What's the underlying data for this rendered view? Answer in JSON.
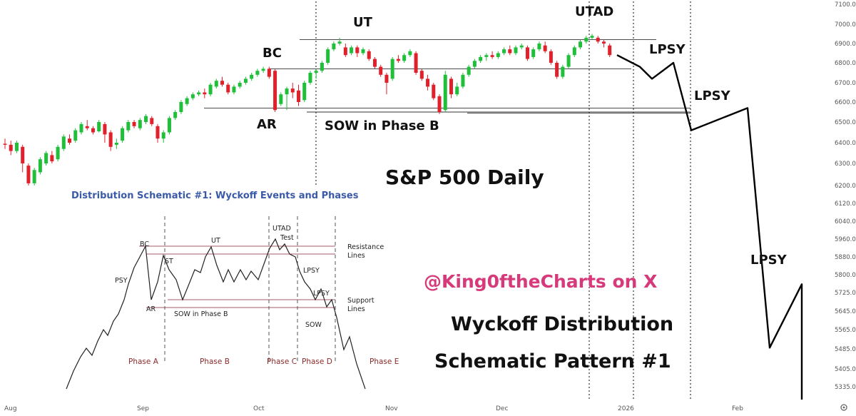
{
  "chart_data": {
    "type": "candlestick",
    "title": "S&P 500 Daily",
    "caption_handle": "@King0ftheCharts on X",
    "caption_line1": "Wyckoff Distribution",
    "caption_line2": "Schematic Pattern #1",
    "y_ticks": [
      "7100.0",
      "7000.0",
      "6900.0",
      "6800.0",
      "6700.0",
      "6600.0",
      "6500.0",
      "6400.0",
      "6300.0",
      "6200.0",
      "6120.0",
      "6040.0",
      "5960.0",
      "5880.0",
      "5800.0",
      "5725.0",
      "5645.0",
      "5565.0",
      "5485.0",
      "5405.0",
      "5335.0"
    ],
    "x_ticks": [
      "Aug",
      "Sep",
      "Oct",
      "Nov",
      "Dec",
      "2026",
      "Feb"
    ],
    "annotations": [
      "BC",
      "AR",
      "UT",
      "SOW in Phase B",
      "UTAD",
      "LPSY",
      "LPSY",
      "LPSY"
    ],
    "levels": [
      6920,
      6770,
      6570,
      6550,
      6545
    ],
    "candles": [
      [
        6395,
        6390,
        6420,
        6370
      ],
      [
        6390,
        6360,
        6410,
        6340
      ],
      [
        6360,
        6400,
        6410,
        6350
      ],
      [
        6380,
        6300,
        6390,
        6260
      ],
      [
        6290,
        6210,
        6300,
        6200
      ],
      [
        6210,
        6270,
        6280,
        6200
      ],
      [
        6260,
        6320,
        6330,
        6250
      ],
      [
        6300,
        6350,
        6360,
        6290
      ],
      [
        6340,
        6310,
        6360,
        6300
      ],
      [
        6320,
        6380,
        6390,
        6310
      ],
      [
        6370,
        6430,
        6440,
        6360
      ],
      [
        6420,
        6400,
        6440,
        6390
      ],
      [
        6410,
        6460,
        6470,
        6400
      ],
      [
        6450,
        6490,
        6500,
        6440
      ],
      [
        6480,
        6470,
        6510,
        6460
      ],
      [
        6470,
        6450,
        6480,
        6440
      ],
      [
        6455,
        6500,
        6510,
        6450
      ],
      [
        6490,
        6440,
        6500,
        6400
      ],
      [
        6450,
        6380,
        6460,
        6360
      ],
      [
        6390,
        6400,
        6420,
        6370
      ],
      [
        6410,
        6470,
        6480,
        6400
      ],
      [
        6460,
        6500,
        6510,
        6450
      ],
      [
        6500,
        6480,
        6510,
        6470
      ],
      [
        6470,
        6510,
        6520,
        6460
      ],
      [
        6500,
        6530,
        6540,
        6490
      ],
      [
        6520,
        6490,
        6530,
        6480
      ],
      [
        6480,
        6420,
        6490,
        6400
      ],
      [
        6420,
        6450,
        6460,
        6400
      ],
      [
        6450,
        6520,
        6530,
        6440
      ],
      [
        6520,
        6550,
        6560,
        6510
      ],
      [
        6550,
        6600,
        6610,
        6540
      ],
      [
        6590,
        6620,
        6630,
        6580
      ],
      [
        6620,
        6640,
        6650,
        6610
      ],
      [
        6640,
        6650,
        6660,
        6630
      ],
      [
        6650,
        6640,
        6670,
        6620
      ],
      [
        6640,
        6690,
        6700,
        6630
      ],
      [
        6680,
        6710,
        6720,
        6670
      ],
      [
        6710,
        6690,
        6730,
        6680
      ],
      [
        6690,
        6650,
        6700,
        6640
      ],
      [
        6650,
        6680,
        6690,
        6640
      ],
      [
        6680,
        6700,
        6710,
        6670
      ],
      [
        6700,
        6720,
        6730,
        6690
      ],
      [
        6720,
        6740,
        6750,
        6710
      ],
      [
        6740,
        6760,
        6770,
        6730
      ],
      [
        6760,
        6770,
        6780,
        6750
      ],
      [
        6770,
        6730,
        6780,
        6720
      ],
      [
        6760,
        6560,
        6770,
        6550
      ],
      [
        6590,
        6640,
        6650,
        6580
      ],
      [
        6640,
        6670,
        6680,
        6560
      ],
      [
        6670,
        6650,
        6700,
        6620
      ],
      [
        6660,
        6600,
        6690,
        6580
      ],
      [
        6610,
        6700,
        6710,
        6600
      ],
      [
        6700,
        6750,
        6760,
        6690
      ],
      [
        6750,
        6760,
        6770,
        6720
      ],
      [
        6760,
        6800,
        6810,
        6750
      ],
      [
        6800,
        6870,
        6880,
        6790
      ],
      [
        6870,
        6900,
        6910,
        6860
      ],
      [
        6900,
        6910,
        6930,
        6890
      ],
      [
        6880,
        6840,
        6900,
        6830
      ],
      [
        6850,
        6880,
        6890,
        6840
      ],
      [
        6880,
        6850,
        6890,
        6830
      ],
      [
        6850,
        6870,
        6880,
        6840
      ],
      [
        6860,
        6820,
        6870,
        6810
      ],
      [
        6820,
        6780,
        6830,
        6770
      ],
      [
        6780,
        6740,
        6790,
        6730
      ],
      [
        6740,
        6700,
        6750,
        6640
      ],
      [
        6720,
        6820,
        6830,
        6710
      ],
      [
        6820,
        6810,
        6840,
        6800
      ],
      [
        6810,
        6840,
        6850,
        6800
      ],
      [
        6840,
        6860,
        6870,
        6830
      ],
      [
        6850,
        6750,
        6860,
        6740
      ],
      [
        6760,
        6720,
        6770,
        6710
      ],
      [
        6720,
        6680,
        6740,
        6660
      ],
      [
        6690,
        6620,
        6700,
        6610
      ],
      [
        6630,
        6550,
        6640,
        6540
      ],
      [
        6560,
        6740,
        6760,
        6550
      ],
      [
        6720,
        6640,
        6730,
        6620
      ],
      [
        6640,
        6680,
        6700,
        6630
      ],
      [
        6680,
        6740,
        6750,
        6670
      ],
      [
        6740,
        6780,
        6790,
        6730
      ],
      [
        6780,
        6810,
        6820,
        6770
      ],
      [
        6810,
        6830,
        6840,
        6800
      ],
      [
        6830,
        6840,
        6850,
        6810
      ],
      [
        6840,
        6830,
        6860,
        6820
      ],
      [
        6830,
        6850,
        6860,
        6820
      ],
      [
        6850,
        6870,
        6880,
        6840
      ],
      [
        6870,
        6850,
        6890,
        6840
      ],
      [
        6850,
        6880,
        6890,
        6840
      ],
      [
        6880,
        6890,
        6900,
        6870
      ],
      [
        6880,
        6820,
        6890,
        6810
      ],
      [
        6830,
        6870,
        6880,
        6820
      ],
      [
        6870,
        6900,
        6910,
        6860
      ],
      [
        6890,
        6860,
        6910,
        6850
      ],
      [
        6860,
        6800,
        6870,
        6790
      ],
      [
        6800,
        6730,
        6810,
        6720
      ],
      [
        6730,
        6780,
        6790,
        6720
      ],
      [
        6780,
        6840,
        6850,
        6770
      ],
      [
        6840,
        6880,
        6890,
        6830
      ],
      [
        6880,
        6910,
        6920,
        6870
      ],
      [
        6910,
        6930,
        6940,
        6900
      ],
      [
        6930,
        6940,
        6950,
        6920
      ],
      [
        6930,
        6910,
        6940,
        6900
      ],
      [
        6910,
        6900,
        6920,
        6880
      ],
      [
        6890,
        6840,
        6900,
        6830
      ]
    ],
    "projection": [
      [
        6840,
        6780
      ],
      [
        6720,
        6800
      ],
      [
        6460,
        6570
      ],
      [
        5490,
        5760
      ],
      [
        5330
      ]
    ]
  },
  "inset": {
    "title": "Distribution Schematic #1: Wyckoff Events and Phases",
    "labels": [
      "BC",
      "PSY",
      "ST",
      "AR",
      "UT",
      "SOW in Phase B",
      "UTAD",
      "Test",
      "LPSY",
      "LPSY",
      "SOW",
      "Resistance",
      "Lines",
      "Support",
      "Lines"
    ],
    "phases": [
      "Phase A",
      "Phase B",
      "Phase C",
      "Phase D",
      "Phase E"
    ]
  },
  "settings_icon": "gear-icon"
}
